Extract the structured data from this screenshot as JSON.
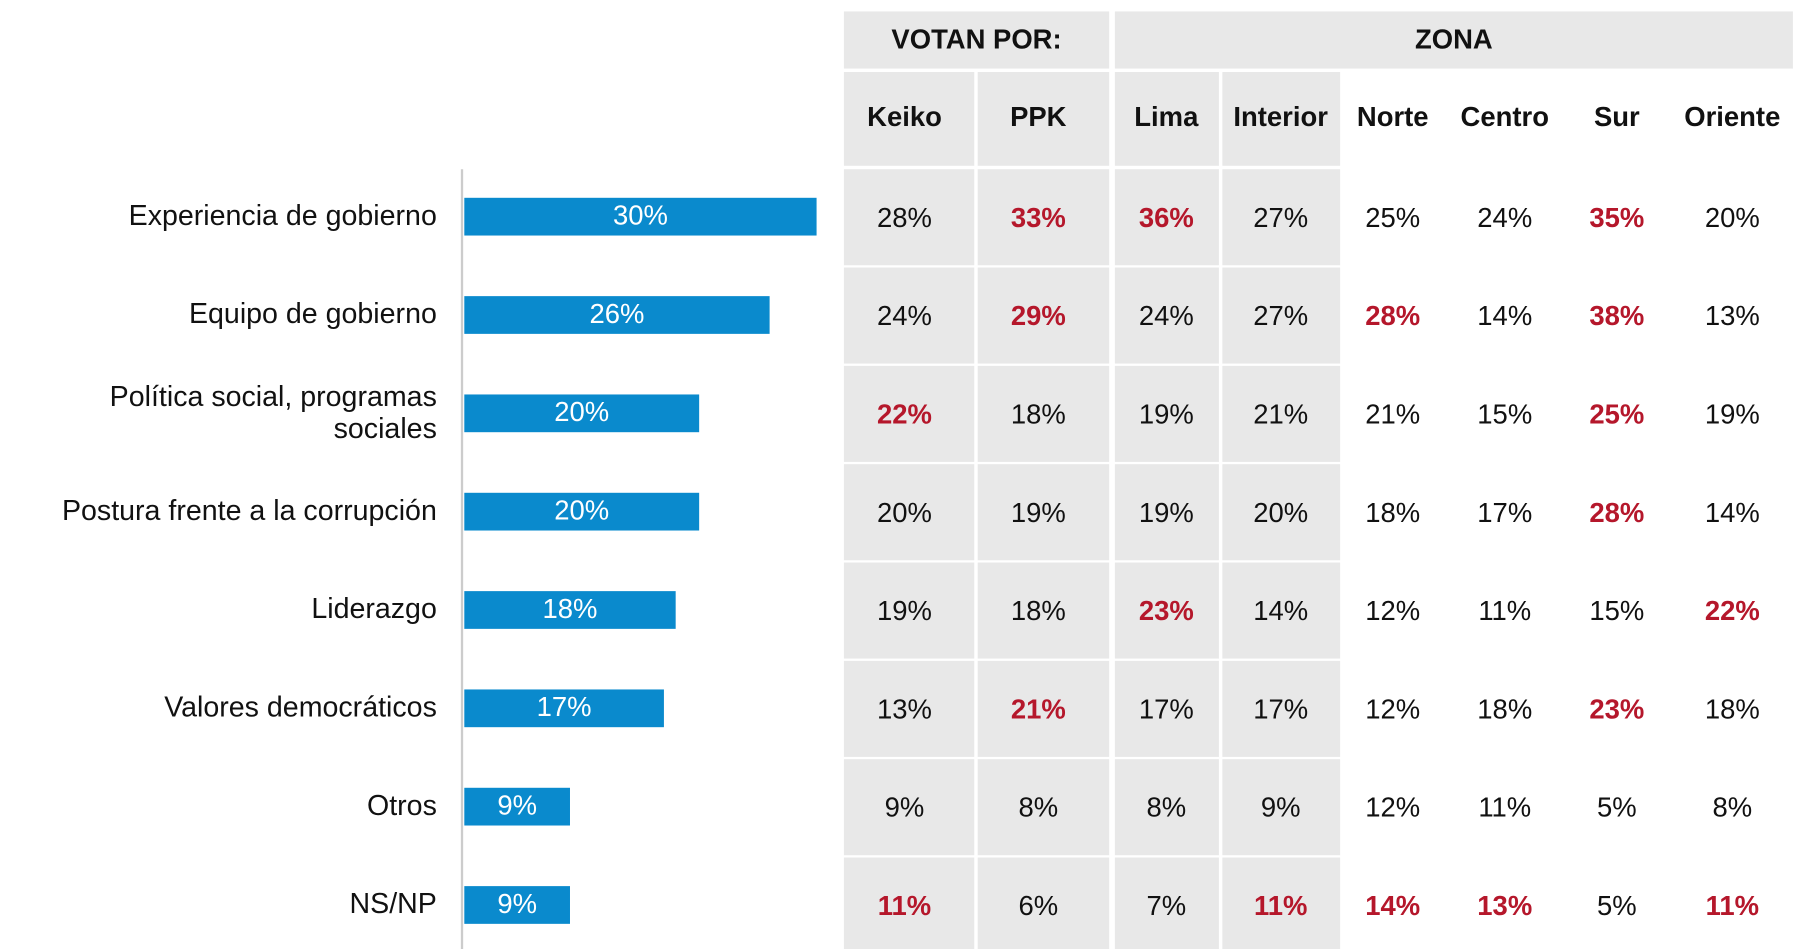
{
  "chart_data": {
    "type": "bar",
    "orientation": "horizontal",
    "categories": [
      "Experiencia de gobierno",
      "Equipo de gobierno",
      "Política social, programas sociales",
      "Postura frente a la corrupción",
      "Liderazgo",
      "Valores democráticos",
      "Otros",
      "NS/NP"
    ],
    "values": [
      30,
      26,
      20,
      20,
      18,
      17,
      9,
      9
    ],
    "value_labels": [
      "30%",
      "26%",
      "20%",
      "20%",
      "18%",
      "17%",
      "9%",
      "9%"
    ],
    "color": "#0a8acd"
  },
  "table": {
    "groups": [
      {
        "label": "VOTAN POR:",
        "columns": [
          "Keiko",
          "PPK"
        ]
      },
      {
        "label": "ZONA",
        "columns": [
          "Lima",
          "Interior",
          "Norte",
          "Centro",
          "Sur",
          "Oriente"
        ]
      }
    ],
    "rows": [
      [
        "28%",
        "33%",
        "36%",
        "27%",
        "25%",
        "24%",
        "35%",
        "20%"
      ],
      [
        "24%",
        "29%",
        "24%",
        "27%",
        "28%",
        "14%",
        "38%",
        "13%"
      ],
      [
        "22%",
        "18%",
        "19%",
        "21%",
        "21%",
        "15%",
        "25%",
        "19%"
      ],
      [
        "20%",
        "19%",
        "19%",
        "20%",
        "18%",
        "17%",
        "28%",
        "14%"
      ],
      [
        "19%",
        "18%",
        "23%",
        "14%",
        "12%",
        "11%",
        "15%",
        "22%"
      ],
      [
        "13%",
        "21%",
        "17%",
        "17%",
        "12%",
        "18%",
        "23%",
        "18%"
      ],
      [
        "9%",
        "8%",
        "8%",
        "9%",
        "12%",
        "11%",
        "5%",
        "8%"
      ],
      [
        "11%",
        "6%",
        "7%",
        "11%",
        "14%",
        "13%",
        "5%",
        "11%"
      ]
    ],
    "highlighted": [
      [
        false,
        true,
        true,
        false,
        false,
        false,
        true,
        false
      ],
      [
        false,
        true,
        false,
        false,
        true,
        false,
        true,
        false
      ],
      [
        true,
        false,
        false,
        false,
        false,
        false,
        true,
        false
      ],
      [
        false,
        false,
        false,
        false,
        false,
        false,
        true,
        false
      ],
      [
        false,
        false,
        true,
        false,
        false,
        false,
        false,
        true
      ],
      [
        false,
        true,
        false,
        false,
        false,
        false,
        true,
        false
      ],
      [
        false,
        false,
        false,
        false,
        false,
        false,
        false,
        false
      ],
      [
        true,
        false,
        false,
        true,
        true,
        true,
        false,
        true
      ]
    ],
    "highlight_color": "#b5172b",
    "shade_color": "#e8e8e8"
  }
}
